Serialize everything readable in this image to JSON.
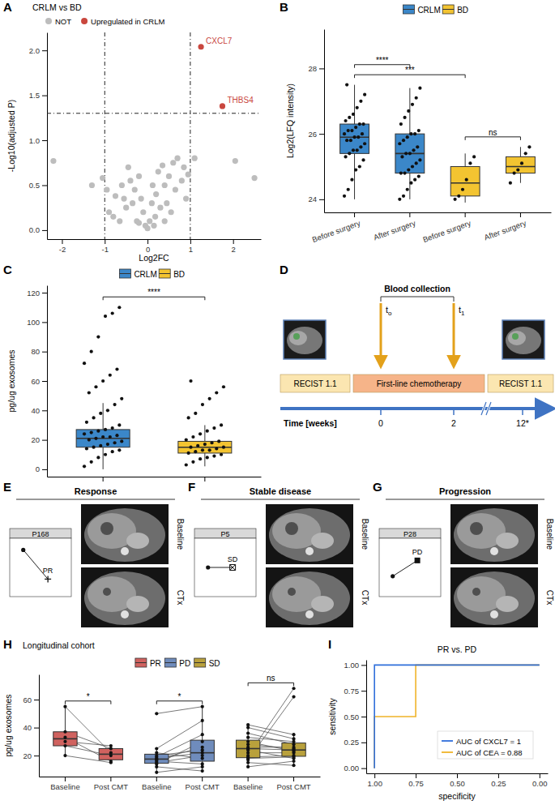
{
  "panel_labels": [
    "A",
    "B",
    "C",
    "D",
    "E",
    "F",
    "G",
    "H",
    "I"
  ],
  "chart_data": [
    {
      "type": "scatter",
      "title": "CRLM vs BD",
      "x_label": "Log2FC",
      "y_label": "-Log10(adjusted P)",
      "xlim": [
        -2.35,
        2.65
      ],
      "ylim": [
        -0.1,
        2.2
      ],
      "xticks": [
        -2,
        -1,
        0,
        1,
        2
      ],
      "yticks": [
        {
          "value": 0,
          "label": "0.0"
        },
        {
          "value": 0.5,
          "label": "0.5"
        },
        {
          "value": 1,
          "label": "1.0"
        },
        {
          "value": 1.5,
          "label": "1.5"
        },
        {
          "value": 2,
          "label": "2.0"
        }
      ],
      "vlines": [
        -1,
        1
      ],
      "hlines": [
        1.3
      ],
      "legend": "top",
      "series": [
        {
          "name": "NOT",
          "color": "#bdbdbd",
          "x": [
            -2.2,
            2.05,
            2.5,
            -1.3,
            -1.05,
            -0.95,
            -0.9,
            -0.8,
            -0.75,
            -0.65,
            -0.6,
            -0.55,
            -0.5,
            -0.45,
            -0.4,
            -0.35,
            -0.3,
            -0.25,
            -0.2,
            -0.2,
            -0.15,
            -0.1,
            -0.05,
            0,
            0.05,
            0.1,
            0.12,
            0.15,
            0.18,
            0.2,
            0.25,
            0.3,
            0.35,
            0.4,
            0.4,
            0.45,
            0.5,
            0.55,
            0.6,
            0.65,
            0.7,
            0.8,
            0.85,
            0.9,
            0.95,
            1.1
          ],
          "y": [
            0.77,
            0.77,
            0.58,
            0.5,
            0.58,
            0.45,
            0.2,
            0.15,
            0.38,
            0.1,
            0.5,
            0.35,
            0.25,
            0.7,
            0.55,
            0.3,
            0.45,
            0.1,
            0.6,
            0.08,
            0.35,
            0.2,
            0.05,
            0.02,
            0.1,
            0.3,
            0.5,
            0.05,
            0.15,
            0.4,
            0.65,
            0.25,
            0.72,
            0.5,
            0.1,
            0.3,
            0.6,
            0.2,
            0.75,
            0.45,
            0.8,
            0.55,
            0.7,
            0.35,
            0.62,
            0.8
          ]
        },
        {
          "name": "Upregulated in CRLM",
          "color": "#c9473e",
          "x": [
            1.25,
            1.75
          ],
          "y": [
            2.04,
            1.38
          ],
          "point_labels": [
            "CXCL7",
            "THBS4"
          ]
        }
      ]
    },
    {
      "type": "box",
      "y_label": "Log2(LFQ intensity)",
      "categories": [
        "Before surgery",
        "After surgery",
        "Before surgery",
        "After surgery"
      ],
      "ylim": [
        23.6,
        29.2
      ],
      "yticks": [
        24,
        26,
        28
      ],
      "legend": "top",
      "series": [
        {
          "name": "CRLM",
          "color": "#3b87c9"
        },
        {
          "name": "BD",
          "color": "#f3c431"
        }
      ],
      "boxes": [
        {
          "group": "CRLM",
          "whisker_low": 24.0,
          "q1": 25.4,
          "median": 25.9,
          "q3": 26.3,
          "whisker_high": 27.5,
          "points": [
            24.1,
            24.3,
            24.6,
            24.9,
            25.0,
            25.2,
            25.3,
            25.4,
            25.5,
            25.5,
            25.6,
            25.7,
            25.8,
            25.8,
            25.9,
            25.9,
            26.0,
            26.0,
            26.1,
            26.1,
            26.2,
            26.3,
            26.3,
            26.4,
            26.5,
            26.6,
            26.8,
            27.0,
            27.2,
            27.5
          ]
        },
        {
          "group": "CRLM",
          "whisker_low": 24.0,
          "q1": 24.8,
          "median": 25.4,
          "q3": 26.0,
          "whisker_high": 27.4,
          "points": [
            24.0,
            24.1,
            24.3,
            24.5,
            24.6,
            24.7,
            24.8,
            24.8,
            24.9,
            25.0,
            25.1,
            25.2,
            25.3,
            25.4,
            25.4,
            25.5,
            25.6,
            25.7,
            25.8,
            25.9,
            26.0,
            26.0,
            26.1,
            26.3,
            26.5,
            26.7,
            26.9,
            27.1,
            27.4
          ]
        },
        {
          "group": "BD",
          "whisker_low": 23.9,
          "q1": 24.1,
          "median": 24.5,
          "q3": 25.0,
          "whisker_high": 25.4,
          "points": [
            24.0,
            24.1,
            24.3,
            24.6,
            25.1,
            25.3
          ]
        },
        {
          "group": "BD",
          "whisker_low": 24.5,
          "q1": 24.8,
          "median": 25.0,
          "q3": 25.3,
          "whisker_high": 25.6,
          "points": [
            24.5,
            24.8,
            24.9,
            25.1,
            25.4,
            25.6
          ]
        }
      ],
      "comparisons": [
        {
          "from": 0,
          "to": 1,
          "label": "****"
        },
        {
          "from": 0,
          "to": 2,
          "label": "***"
        },
        {
          "from": 2,
          "to": 3,
          "label": "ns"
        }
      ]
    },
    {
      "type": "box",
      "y_label": "pg/ug exosomes",
      "categories": [
        null,
        null
      ],
      "ylim": [
        -5,
        125
      ],
      "yticks": [
        0,
        20,
        40,
        60,
        80,
        100,
        120
      ],
      "legend": "top",
      "series": [
        {
          "name": "CRLM",
          "color": "#3b87c9"
        },
        {
          "name": "BD",
          "color": "#f3c431"
        }
      ],
      "boxes": [
        {
          "group": "CRLM",
          "whisker_low": 0,
          "q1": 15,
          "median": 21,
          "q3": 27,
          "whisker_high": 45,
          "points": [
            2,
            5,
            8,
            10,
            12,
            13,
            14,
            15,
            16,
            17,
            18,
            19,
            20,
            21,
            22,
            22,
            23,
            24,
            25,
            26,
            27,
            28,
            30,
            32,
            35,
            38,
            40,
            44,
            48,
            52,
            56,
            60,
            64,
            68,
            72,
            80,
            90,
            104,
            106,
            110
          ]
        },
        {
          "group": "BD",
          "whisker_low": 2,
          "q1": 11,
          "median": 15,
          "q3": 19,
          "whisker_high": 30,
          "points": [
            3,
            5,
            7,
            8,
            9,
            10,
            11,
            12,
            13,
            13,
            14,
            15,
            15,
            16,
            17,
            18,
            19,
            20,
            22,
            24,
            26,
            28,
            30,
            35,
            38,
            44,
            48,
            52,
            56,
            60
          ]
        }
      ],
      "comparisons": [
        {
          "from": 0,
          "to": 1,
          "label": "****"
        }
      ]
    },
    {
      "type": "box",
      "title": "Longitudinal cohort",
      "y_label": "pg/ug exosomes",
      "categories": [
        "Baseline",
        "Post CMT",
        "Baseline",
        "Post CMT",
        "Baseline",
        "Post CMT"
      ],
      "ylim": [
        5,
        78
      ],
      "yticks": [
        20,
        40,
        60
      ],
      "legend": "top",
      "series": [
        {
          "name": "PR",
          "color": "#d0625f"
        },
        {
          "name": "PD",
          "color": "#6f8cbc"
        },
        {
          "name": "SD",
          "color": "#b9a13c"
        }
      ],
      "boxes": [
        {
          "group": "PR",
          "whisker_low": 20,
          "q1": 27,
          "median": 32,
          "q3": 37,
          "whisker_high": 55,
          "points": [
            55,
            37,
            33,
            30,
            27,
            20
          ]
        },
        {
          "group": "PR",
          "whisker_low": 15,
          "q1": 17,
          "median": 21,
          "q3": 25,
          "whisker_high": 27,
          "points": [
            22,
            25,
            16,
            27,
            20,
            15
          ]
        },
        {
          "group": "PD",
          "whisker_low": 8,
          "q1": 14.5,
          "median": 17.5,
          "q3": 21,
          "whisker_high": 25,
          "points": [
            8,
            12,
            14,
            15,
            16,
            17,
            18,
            19,
            20,
            22,
            25,
            50
          ]
        },
        {
          "group": "PD",
          "whisker_low": 9,
          "q1": 16,
          "median": 22,
          "q3": 31,
          "whisker_high": 55,
          "points": [
            12,
            9,
            30,
            20,
            14,
            26,
            22,
            35,
            24,
            18,
            45,
            55
          ]
        },
        {
          "group": "SD",
          "whisker_low": 12,
          "q1": 18.5,
          "median": 25,
          "q3": 31,
          "whisker_high": 42,
          "points": [
            12,
            15,
            17,
            18,
            19,
            20,
            22,
            24,
            25,
            26,
            28,
            30,
            33,
            36,
            40,
            42
          ]
        },
        {
          "group": "SD",
          "whisker_low": 13,
          "q1": 19.5,
          "median": 24,
          "q3": 29,
          "whisker_high": 35,
          "points": [
            16,
            13,
            62,
            19,
            20,
            68,
            22,
            18,
            24,
            26,
            25,
            23,
            30,
            28,
            32,
            35
          ]
        }
      ],
      "pairs": [
        [
          0,
          1
        ],
        [
          2,
          3
        ],
        [
          4,
          5
        ]
      ],
      "comparisons": [
        {
          "from": 0,
          "to": 1,
          "label": "*"
        },
        {
          "from": 2,
          "to": 3,
          "label": "*"
        },
        {
          "from": 4,
          "to": 5,
          "label": "ns"
        }
      ]
    },
    {
      "type": "line",
      "title": "PR vs. PD",
      "x_label": "specificity",
      "y_label": "sensitivity",
      "xlim": [
        1.05,
        -0.05
      ],
      "ylim": [
        -0.05,
        1.05
      ],
      "xticks": [
        {
          "value": 1,
          "label": "1.00"
        },
        {
          "value": 0.75,
          "label": "0.75"
        },
        {
          "value": 0.5,
          "label": "0.50"
        },
        {
          "value": 0.25,
          "label": "0.25"
        },
        {
          "value": 0,
          "label": "0.00"
        }
      ],
      "yticks": [
        {
          "value": 0,
          "label": "0.00"
        },
        {
          "value": 0.25,
          "label": "0.25"
        },
        {
          "value": 0.5,
          "label": "0.50"
        },
        {
          "value": 0.75,
          "label": "0.75"
        },
        {
          "value": 1,
          "label": "1.00"
        }
      ],
      "legend": "bottom",
      "series": [
        {
          "name": "AUC of CXCL7 = 1",
          "color": "#2f6fdb",
          "x": [
            1,
            1,
            0
          ],
          "y": [
            0,
            1,
            1
          ]
        },
        {
          "name": "AUC of CEA = 0.88",
          "color": "#f0b429",
          "x": [
            1,
            1,
            0.75,
            0.75,
            0
          ],
          "y": [
            0,
            0.5,
            0.5,
            1,
            1
          ]
        }
      ]
    }
  ],
  "timeline": {
    "collection_label": "Blood collection",
    "collections": [
      {
        "label": "t",
        "subscript": "o"
      },
      {
        "label": "t",
        "subscript": "1"
      }
    ],
    "phases": [
      "RECIST 1.1",
      "First-line chemotherapy",
      "RECIST 1.1"
    ],
    "axis_label": "Time [weeks]",
    "ticks": [
      "0",
      "2",
      "12*"
    ]
  },
  "patients": [
    {
      "heading": "Response",
      "patient": "P168",
      "status": "PR",
      "marker": "plus",
      "ylim": [
        0,
        1
      ],
      "values": [
        0.8,
        0.3
      ],
      "image_labels": [
        "Baseline",
        "CTx"
      ]
    },
    {
      "heading": "Stable disease",
      "patient": "P5",
      "status": "SD",
      "marker": "square-cross",
      "ylim": [
        0,
        1
      ],
      "values": [
        0.5,
        0.5
      ],
      "image_labels": [
        "Baseline",
        "CTx"
      ]
    },
    {
      "heading": "Progression",
      "patient": "P28",
      "status": "PD",
      "marker": "square",
      "ylim": [
        0,
        1
      ],
      "values": [
        0.35,
        0.62
      ],
      "image_labels": [
        "Baseline",
        "CTx"
      ]
    }
  ]
}
